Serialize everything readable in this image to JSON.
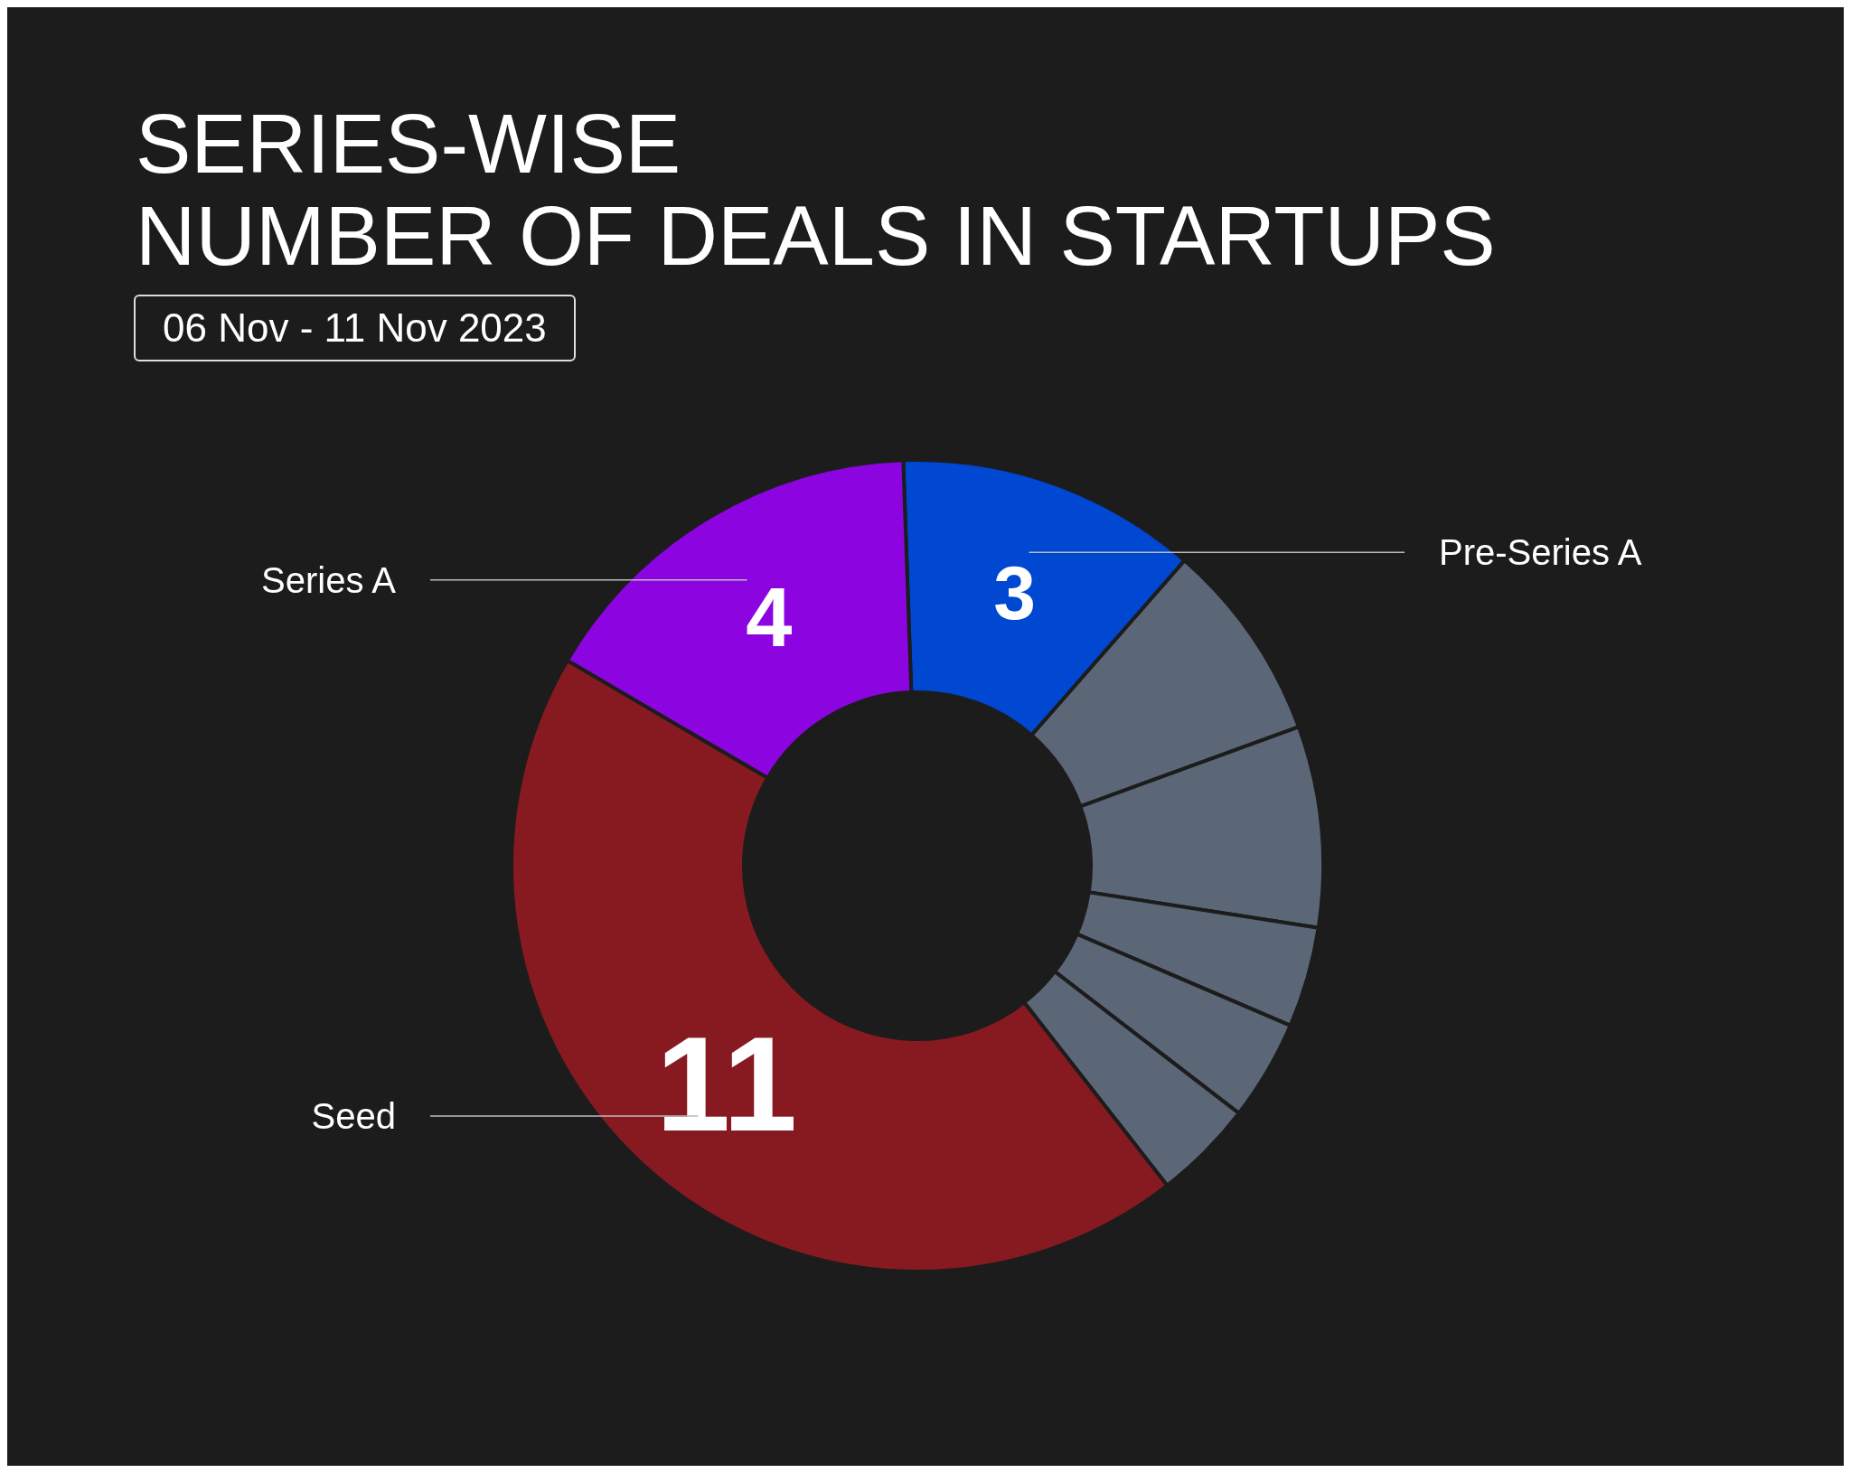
{
  "chart_data": {
    "type": "donut",
    "title": "SERIES-WISE\nNUMBER OF DEALS IN STARTUPS",
    "subtitle": "06 Nov - 11 Nov 2023",
    "categories": [
      "Pre-Series A",
      null,
      null,
      null,
      null,
      null,
      "Seed",
      "Series A"
    ],
    "values": [
      3,
      2,
      2,
      1,
      1,
      1,
      11,
      4
    ],
    "colors": [
      "#0047d1",
      "#5b6676",
      "#5b6676",
      "#5b6676",
      "#5b6676",
      "#5b6676",
      "#871a20",
      "#8c05e0"
    ],
    "value_labels": [
      "3",
      null,
      null,
      null,
      null,
      null,
      "11",
      "4"
    ],
    "legend": false
  }
}
